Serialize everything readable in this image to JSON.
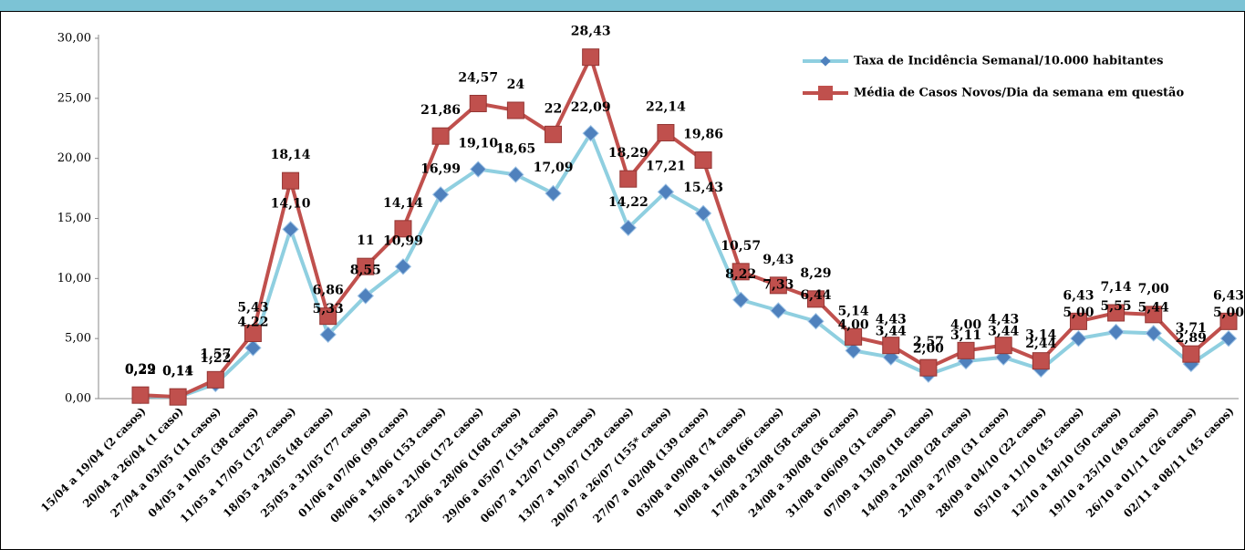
{
  "chart_data": {
    "type": "line",
    "categories": [
      "15/04 a 19/04 (2 casos)",
      "20/04 a 26/04 (1 caso)",
      "27/04 a 03/05 (11 casos)",
      "04/05 a 10/05 (38 casos)",
      "11/05 a 17/05 (127 casos)",
      "18/05 a 24/05 (48 casos)",
      "25/05 a 31/05 (77 casos)",
      "01/06 a 07/06 (99 casos)",
      "08/06 a 14/06 (153 casos)",
      "15/06 a 21/06 (172 casos)",
      "22/06 a 28/06 (168 casos)",
      "29/06 a 05/07 (154 casos)",
      "06/07 a 12/07 (199 casos)",
      "13/07 a 19/07 (128 casos)",
      "20/07 a 26/07 (155* casos)",
      "27/07 a 02/08 (139 casos)",
      "03/08 a 09/08 (74 casos)",
      "10/08 a 16/08 (66 casos)",
      "17/08 a 23/08 (58 casos)",
      "24/08 a 30/08 (36 casos)",
      "31/08 a 06/09 (31 casos)",
      "07/09 a 13/09 (18 casos)",
      "14/09 a 20/09 (28 casos)",
      "21/09 a 27/09 (31 casos)",
      "28/09 a 04/10 (22 casos)",
      "05/10 a 11/10 (45 casos)",
      "12/10 a 18/10 (50 casos)",
      "19/10 a 25/10 (49 casos)",
      "26/10 a 01/11 (26 casos)",
      "02/11 a 08/11 (45 casos)"
    ],
    "series": [
      {
        "name": "Taxa de Incidência Semanal/10.000 habitantes",
        "color": "#8fcfe0",
        "marker_color": "#4f81bd",
        "values": [
          0.22,
          0.11,
          1.22,
          4.22,
          14.1,
          5.33,
          8.55,
          10.99,
          16.99,
          19.1,
          18.65,
          17.09,
          22.09,
          14.22,
          17.21,
          15.43,
          8.22,
          7.33,
          6.44,
          4.0,
          3.44,
          2.0,
          3.11,
          3.44,
          2.44,
          5.0,
          5.55,
          5.44,
          2.89,
          5.0
        ],
        "value_labels": [
          "0,22",
          "0,11",
          "1,22",
          "4,22",
          "14,10",
          "5,33",
          "8,55",
          "10,99",
          "16,99",
          "19,10",
          "18,65",
          "17,09",
          "22,09",
          "14,22",
          "17,21",
          "15,43",
          "8,22",
          "7,33",
          "6,44",
          "4,00",
          "3,44",
          "2,00",
          "3,11",
          "3,44",
          "2,44",
          "5,00",
          "5,55",
          "5,44",
          "2,89",
          "5,00"
        ]
      },
      {
        "name": "Média de Casos Novos/Dia da semana em questão",
        "color": "#c0504d",
        "marker_color": "#c0504d",
        "values": [
          0.29,
          0.14,
          1.57,
          5.43,
          18.14,
          6.86,
          11,
          14.14,
          21.86,
          24.57,
          24,
          22,
          28.43,
          18.29,
          22.14,
          19.86,
          10.57,
          9.43,
          8.29,
          5.14,
          4.43,
          2.57,
          4.0,
          4.43,
          3.14,
          6.43,
          7.14,
          7.0,
          3.71,
          6.43
        ],
        "value_labels": [
          "0,29",
          "0,14",
          "1,57",
          "5,43",
          "18,14",
          "6,86",
          "11",
          "14,14",
          "21,86",
          "24,57",
          "24",
          "22",
          "28,43",
          "18,29",
          "22,14",
          "19,86",
          "10,57",
          "9,43",
          "8,29",
          "5,14",
          "4,43",
          "2,57",
          "4,00",
          "4,43",
          "3,14",
          "6,43",
          "7,14",
          "7,00",
          "3,71",
          "6,43"
        ]
      }
    ],
    "ylim": [
      0,
      30
    ],
    "yticks": [
      {
        "value": 0,
        "label": "0,00"
      },
      {
        "value": 5,
        "label": "5,00"
      },
      {
        "value": 10,
        "label": "10,00"
      },
      {
        "value": 15,
        "label": "15,00"
      },
      {
        "value": 20,
        "label": "20,00"
      },
      {
        "value": 25,
        "label": "25,00"
      },
      {
        "value": 30,
        "label": "30,00"
      }
    ],
    "legend": "top-right"
  }
}
